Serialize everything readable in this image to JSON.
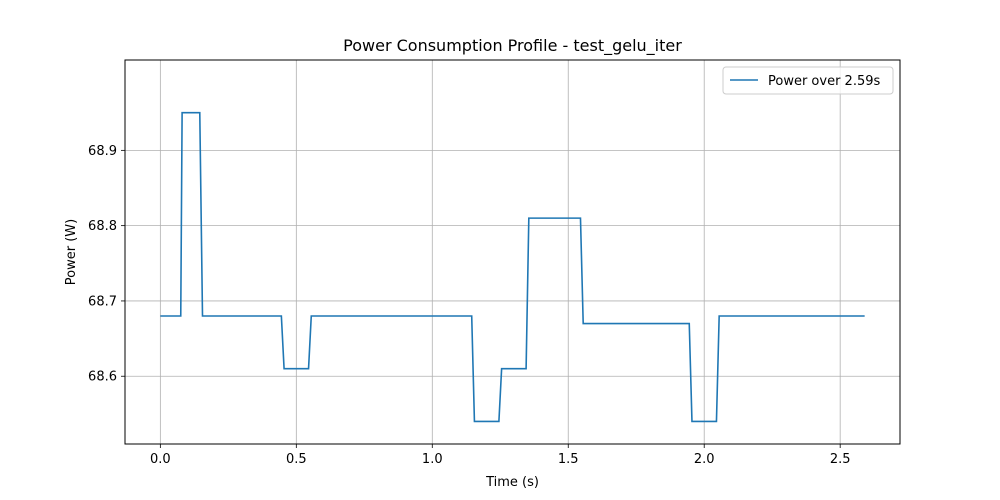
{
  "chart_data": {
    "type": "line",
    "title": "Power Consumption Profile - test_gelu_iter",
    "xlabel": "Time (s)",
    "ylabel": "Power (W)",
    "xlim": [
      -0.13,
      2.72
    ],
    "ylim": [
      68.51,
      69.02
    ],
    "xticks": [
      0.0,
      0.5,
      1.0,
      1.5,
      2.0,
      2.5
    ],
    "xtick_labels": [
      "0.0",
      "0.5",
      "1.0",
      "1.5",
      "2.0",
      "2.5"
    ],
    "yticks": [
      68.6,
      68.7,
      68.8,
      68.9
    ],
    "ytick_labels": [
      "68.6",
      "68.7",
      "68.8",
      "68.9"
    ],
    "grid": true,
    "legend_position": "top-right",
    "series": [
      {
        "name": "Power over 2.59s",
        "color": "#1f77b4",
        "step": "pre",
        "x": [
          0.0,
          0.075,
          0.08,
          0.145,
          0.155,
          0.445,
          0.455,
          0.545,
          0.555,
          1.145,
          1.155,
          1.245,
          1.255,
          1.345,
          1.355,
          1.545,
          1.555,
          1.945,
          1.955,
          2.045,
          2.055,
          2.59
        ],
        "y": [
          68.68,
          68.68,
          68.95,
          68.95,
          68.68,
          68.68,
          68.61,
          68.61,
          68.68,
          68.68,
          68.54,
          68.54,
          68.61,
          68.61,
          68.81,
          68.81,
          68.67,
          68.67,
          68.54,
          68.54,
          68.68,
          68.68
        ]
      }
    ]
  }
}
